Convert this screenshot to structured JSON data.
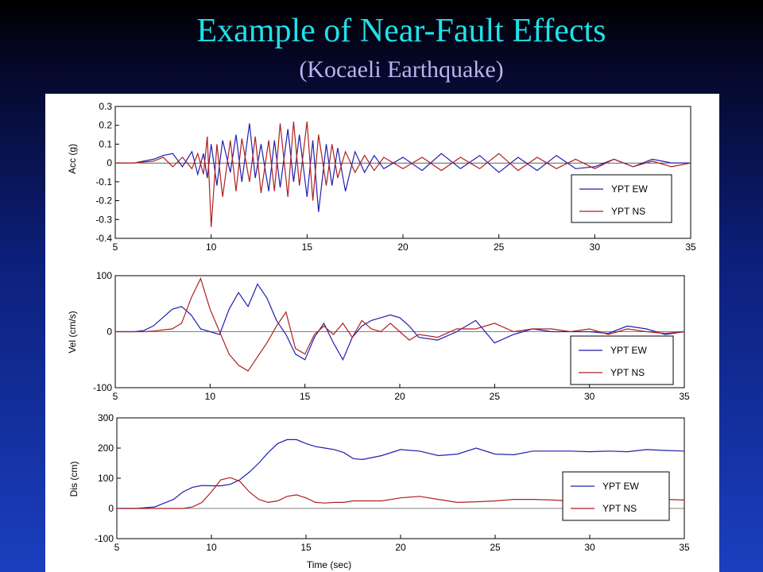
{
  "slide": {
    "title": "Example of Near-Fault Effects",
    "subtitle": "(Kocaeli Earthquake)"
  },
  "colors": {
    "ew": "#1f1fb0",
    "ns": "#b01f1f"
  },
  "chart_data": [
    {
      "type": "line",
      "ylabel": "Acc (g)",
      "xlim": [
        5,
        35
      ],
      "ylim": [
        -0.4,
        0.3
      ],
      "yticks": [
        "0.3",
        "0.2",
        "0.1",
        "0",
        "-0.1",
        "-0.2",
        "-0.3",
        "-0.4"
      ],
      "yticks_num": [
        0.3,
        0.2,
        0.1,
        0,
        -0.1,
        -0.2,
        -0.3,
        -0.4
      ],
      "xticks": [
        "5",
        "10",
        "15",
        "20",
        "25",
        "30",
        "35"
      ],
      "xticks_num": [
        5,
        10,
        15,
        20,
        25,
        30,
        35
      ],
      "x": [
        5,
        6,
        7,
        7.5,
        8,
        8.5,
        9,
        9.3,
        9.6,
        9.8,
        10,
        10.3,
        10.6,
        11,
        11.3,
        11.6,
        12,
        12.3,
        12.6,
        13,
        13.3,
        13.6,
        14,
        14.3,
        14.6,
        15,
        15.3,
        15.6,
        16,
        16.3,
        16.6,
        17,
        17.5,
        18,
        18.5,
        19,
        20,
        21,
        22,
        23,
        24,
        25,
        26,
        27,
        28,
        29,
        30,
        31,
        32,
        33,
        34,
        35
      ],
      "series": [
        {
          "name": "YPT EW",
          "values": [
            0,
            0,
            0.02,
            0.04,
            0.05,
            -0.02,
            0.06,
            -0.06,
            0.05,
            -0.08,
            0.1,
            -0.12,
            0.12,
            -0.05,
            0.15,
            -0.1,
            0.21,
            -0.08,
            0.1,
            -0.15,
            0.12,
            -0.13,
            0.18,
            -0.1,
            0.15,
            -0.18,
            0.12,
            -0.26,
            0.1,
            -0.12,
            0.08,
            -0.15,
            0.06,
            -0.05,
            0.04,
            -0.03,
            0.03,
            -0.04,
            0.05,
            -0.03,
            0.04,
            -0.05,
            0.03,
            -0.04,
            0.04,
            -0.03,
            -0.02,
            0.02,
            -0.02,
            0.02,
            0,
            0
          ]
        },
        {
          "name": "YPT NS",
          "values": [
            0,
            0,
            0.01,
            0.03,
            -0.02,
            0.03,
            -0.03,
            0.05,
            -0.06,
            0.14,
            -0.34,
            0.1,
            -0.18,
            0.12,
            -0.15,
            0.13,
            -0.1,
            0.14,
            -0.16,
            0.12,
            -0.15,
            0.21,
            -0.18,
            0.22,
            -0.12,
            0.22,
            -0.2,
            0.15,
            -0.12,
            0.1,
            -0.08,
            0.06,
            -0.05,
            0.04,
            -0.04,
            0.03,
            -0.03,
            0.03,
            -0.04,
            0.03,
            -0.03,
            0.05,
            -0.04,
            0.03,
            -0.03,
            0.02,
            -0.03,
            0.02,
            -0.02,
            0.01,
            -0.02,
            0
          ]
        }
      ],
      "legend": {
        "position": "bottom-right",
        "entries": [
          "YPT EW",
          "YPT NS"
        ]
      }
    },
    {
      "type": "line",
      "ylabel": "Vel (cm/s)",
      "xlim": [
        5,
        35
      ],
      "ylim": [
        -100,
        100
      ],
      "yticks": [
        "100",
        "0",
        "-100"
      ],
      "yticks_num": [
        100,
        0,
        -100
      ],
      "xticks": [
        "5",
        "10",
        "15",
        "20",
        "25",
        "30",
        "35"
      ],
      "xticks_num": [
        5,
        10,
        15,
        20,
        25,
        30,
        35
      ],
      "x": [
        5,
        6,
        6.5,
        7,
        7.5,
        8,
        8.5,
        9,
        9.5,
        10,
        10.5,
        11,
        11.5,
        12,
        12.5,
        13,
        13.5,
        14,
        14.5,
        15,
        15.5,
        16,
        16.5,
        17,
        17.5,
        18,
        18.5,
        19,
        19.5,
        20,
        20.5,
        21,
        22,
        23,
        24,
        25,
        26,
        27,
        28,
        29,
        30,
        31,
        32,
        33,
        34,
        35
      ],
      "series": [
        {
          "name": "YPT EW",
          "values": [
            0,
            0,
            2,
            10,
            25,
            40,
            45,
            30,
            5,
            0,
            -5,
            40,
            70,
            45,
            85,
            60,
            20,
            -5,
            -40,
            -50,
            -10,
            15,
            -20,
            -50,
            -10,
            10,
            20,
            25,
            30,
            25,
            10,
            -10,
            -15,
            0,
            20,
            -20,
            -5,
            5,
            0,
            0,
            0,
            -3,
            10,
            5,
            -5,
            0
          ]
        },
        {
          "name": "YPT NS",
          "values": [
            0,
            0,
            0,
            1,
            3,
            5,
            15,
            60,
            95,
            40,
            0,
            -40,
            -60,
            -70,
            -45,
            -20,
            10,
            35,
            -30,
            -40,
            -5,
            10,
            -5,
            15,
            -10,
            20,
            5,
            0,
            15,
            0,
            -15,
            -5,
            -10,
            5,
            5,
            15,
            0,
            5,
            5,
            0,
            5,
            -5,
            5,
            0,
            -3,
            0
          ]
        }
      ],
      "legend": {
        "position": "bottom-right",
        "entries": [
          "YPT EW",
          "YPT NS"
        ]
      }
    },
    {
      "type": "line",
      "ylabel": "Dis (cm)",
      "xlabel": "Time (sec)",
      "xlim": [
        5,
        35
      ],
      "ylim": [
        -100,
        300
      ],
      "yticks": [
        "300",
        "200",
        "100",
        "0",
        "-100"
      ],
      "yticks_num": [
        300,
        200,
        100,
        0,
        -100
      ],
      "xticks": [
        "5",
        "10",
        "15",
        "20",
        "25",
        "30",
        "35"
      ],
      "xticks_num": [
        5,
        10,
        15,
        20,
        25,
        30,
        35
      ],
      "x": [
        5,
        6,
        7,
        8,
        8.5,
        9,
        9.5,
        10,
        10.5,
        11,
        11.5,
        12,
        12.5,
        13,
        13.5,
        14,
        14.5,
        15,
        15.5,
        16,
        16.5,
        17,
        17.5,
        18,
        19,
        20,
        21,
        22,
        23,
        24,
        25,
        26,
        27,
        28,
        29,
        30,
        31,
        32,
        33,
        34,
        35
      ],
      "series": [
        {
          "name": "YPT EW",
          "values": [
            0,
            0,
            5,
            30,
            55,
            70,
            76,
            75,
            75,
            80,
            95,
            120,
            150,
            185,
            215,
            228,
            228,
            215,
            205,
            200,
            195,
            185,
            165,
            162,
            175,
            195,
            190,
            175,
            180,
            200,
            180,
            178,
            190,
            190,
            190,
            188,
            190,
            188,
            195,
            192,
            190
          ]
        },
        {
          "name": "YPT NS",
          "values": [
            0,
            0,
            0,
            0,
            0,
            5,
            20,
            55,
            95,
            102,
            90,
            55,
            30,
            20,
            25,
            40,
            45,
            35,
            20,
            18,
            20,
            20,
            25,
            25,
            25,
            35,
            40,
            30,
            20,
            22,
            25,
            30,
            30,
            28,
            25,
            27,
            30,
            30,
            28,
            30,
            28
          ]
        }
      ],
      "legend": {
        "position": "bottom-right",
        "entries": [
          "YPT EW",
          "YPT NS"
        ]
      }
    }
  ]
}
